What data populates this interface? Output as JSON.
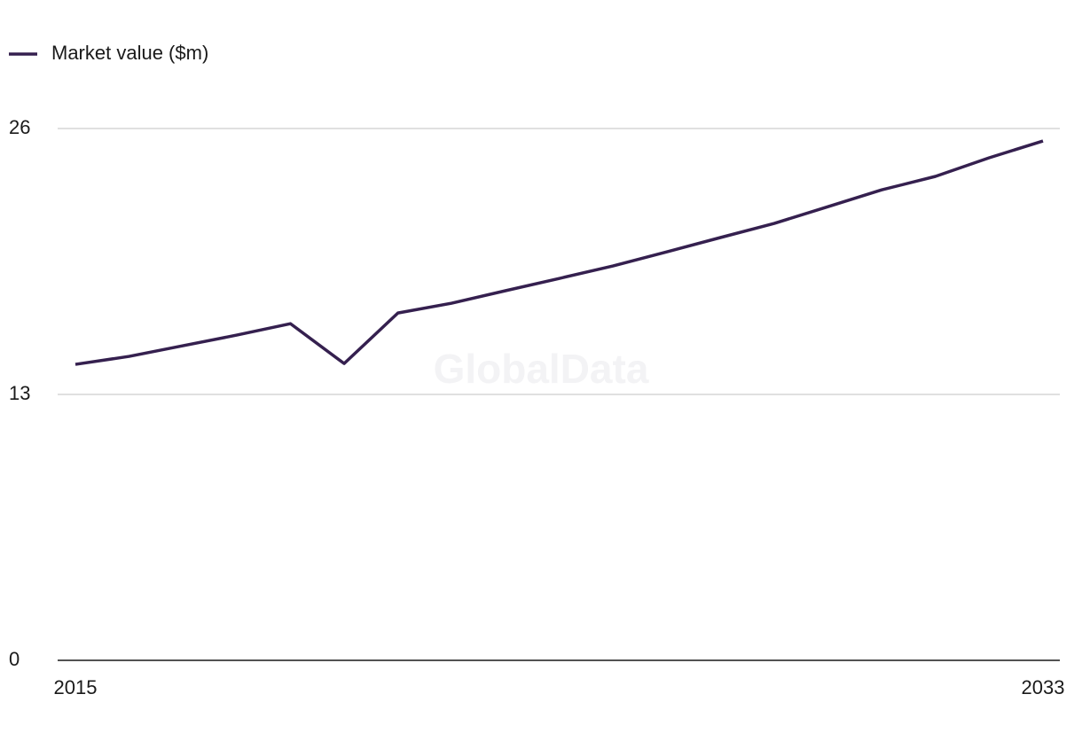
{
  "chart_data": {
    "type": "line",
    "watermark": "GlobalData",
    "x": [
      2015,
      2016,
      2017,
      2018,
      2019,
      2020,
      2021,
      2022,
      2023,
      2024,
      2025,
      2026,
      2027,
      2028,
      2029,
      2030,
      2031,
      2032,
      2033
    ],
    "series": [
      {
        "name": "Market value ($m)",
        "color": "#35204f",
        "values": [
          14.47,
          14.86,
          15.38,
          15.9,
          16.46,
          14.51,
          16.98,
          17.46,
          18.07,
          18.67,
          19.28,
          19.97,
          20.67,
          21.36,
          22.18,
          23.0,
          23.66,
          24.57,
          25.39
        ]
      }
    ],
    "xlim": [
      2015,
      2033
    ],
    "xticks": [
      2015,
      2033
    ],
    "ylim": [
      0,
      26
    ],
    "yticks": [
      0,
      13,
      26
    ],
    "grid": true,
    "legend": "top-left"
  }
}
